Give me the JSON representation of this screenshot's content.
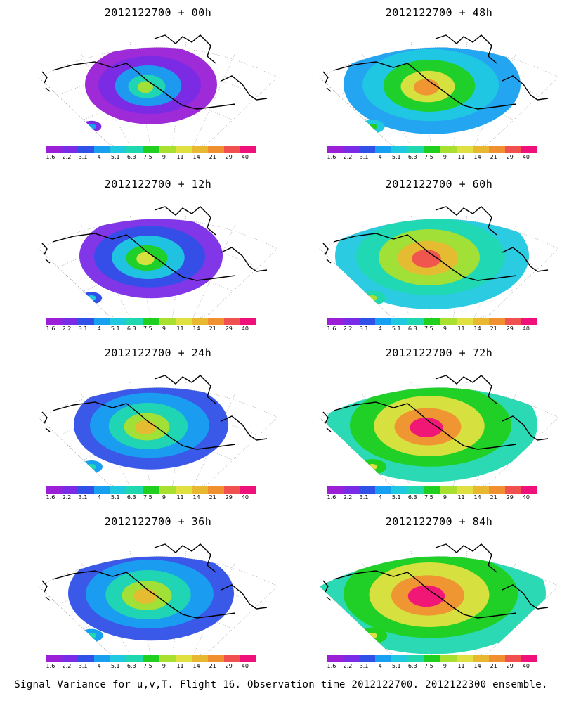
{
  "footer_caption": "Signal Variance for u,v,T. Flight 16. Observation time 2012122700. 2012122300 ensemble.",
  "colorbar": {
    "ticks": [
      "1.6",
      "2.2",
      "3.1",
      "4",
      "5.1",
      "6.3",
      "7.5",
      "9",
      "11",
      "14",
      "21",
      "29",
      "40"
    ],
    "colors": [
      "#9a1fd6",
      "#7a2be6",
      "#3050e8",
      "#18a0f0",
      "#20c8e0",
      "#20d8b0",
      "#20d020",
      "#a8e030",
      "#e0e040",
      "#e8b830",
      "#f09030",
      "#f05050",
      "#f0107a"
    ]
  },
  "panels": [
    {
      "title": "2012122700 + 00h",
      "level": 0.05
    },
    {
      "title": "2012122700 + 48h",
      "level": 0.45
    },
    {
      "title": "2012122700 + 12h",
      "level": 0.15
    },
    {
      "title": "2012122700 + 60h",
      "level": 0.6
    },
    {
      "title": "2012122700 + 24h",
      "level": 0.25
    },
    {
      "title": "2012122700 + 72h",
      "level": 0.75
    },
    {
      "title": "2012122700 + 36h",
      "level": 0.35
    },
    {
      "title": "2012122700 + 84h",
      "level": 0.9
    }
  ]
}
